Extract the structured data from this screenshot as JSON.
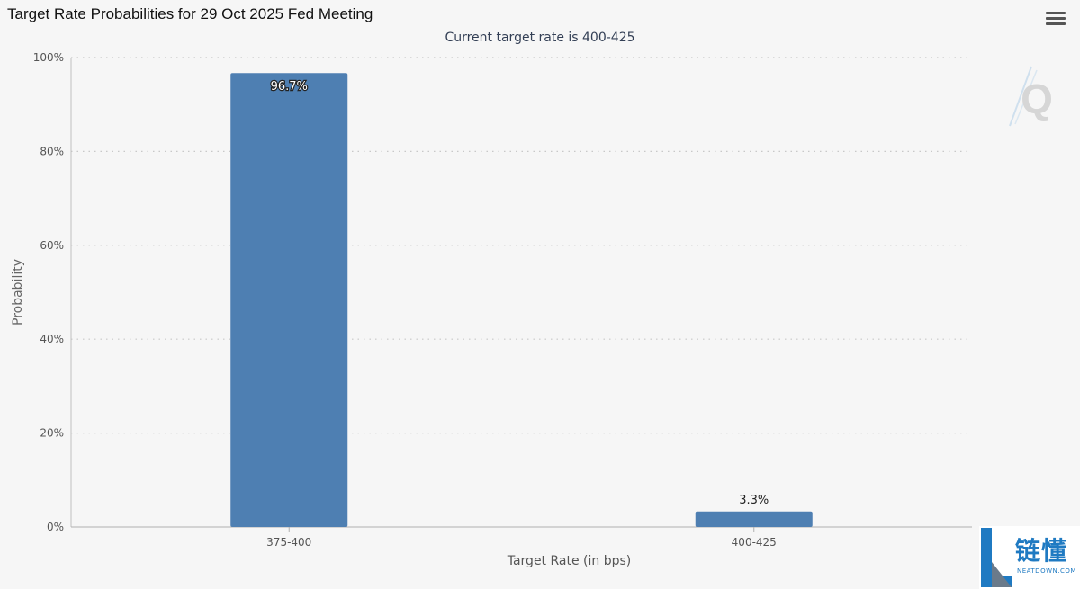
{
  "header": {
    "title": "Target Rate Probabilities for 29 Oct 2025 Fed Meeting",
    "menu_icon": "hamburger-menu-icon"
  },
  "chart_data": {
    "type": "bar",
    "title": "Target Rate Probabilities for 29 Oct 2025 Fed Meeting",
    "subtitle": "Current target rate is 400-425",
    "xlabel": "Target Rate (in bps)",
    "ylabel": "Probability",
    "categories": [
      "375-400",
      "400-425"
    ],
    "values": [
      96.7,
      3.3
    ],
    "data_labels": [
      "96.7%",
      "3.3%"
    ],
    "ylim": [
      0,
      100
    ],
    "yticks": [
      0,
      20,
      40,
      60,
      80,
      100
    ],
    "ytick_labels": [
      "0%",
      "20%",
      "40%",
      "60%",
      "80%",
      "100%"
    ],
    "grid": true,
    "bar_color": "#4e7fb2"
  },
  "watermark": {
    "letter": "Q"
  },
  "brand_logo": {
    "name_cn": "链懂",
    "name_en": "NEATDOWN.COM"
  }
}
